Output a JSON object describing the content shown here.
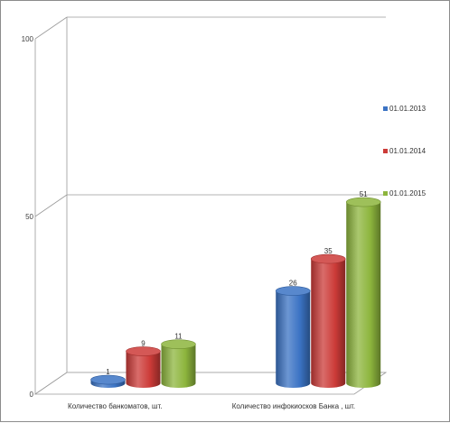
{
  "chart_data": {
    "type": "bar",
    "style": "3d-cylinder",
    "categories": [
      "Количество банкоматов, шт.",
      "Количество инфокиосков Банка , шт."
    ],
    "series": [
      {
        "name": "01.01.2013",
        "values": [
          1,
          26
        ],
        "color": "#3b73c4"
      },
      {
        "name": "01.01.2014",
        "values": [
          9,
          35
        ],
        "color": "#cc3b38"
      },
      {
        "name": "01.01.2015",
        "values": [
          11,
          51
        ],
        "color": "#8db53d"
      }
    ],
    "y_ticks": [
      "0",
      "50",
      "100"
    ],
    "ylim": [
      0,
      100
    ],
    "grid": true,
    "legend_position": "right"
  }
}
